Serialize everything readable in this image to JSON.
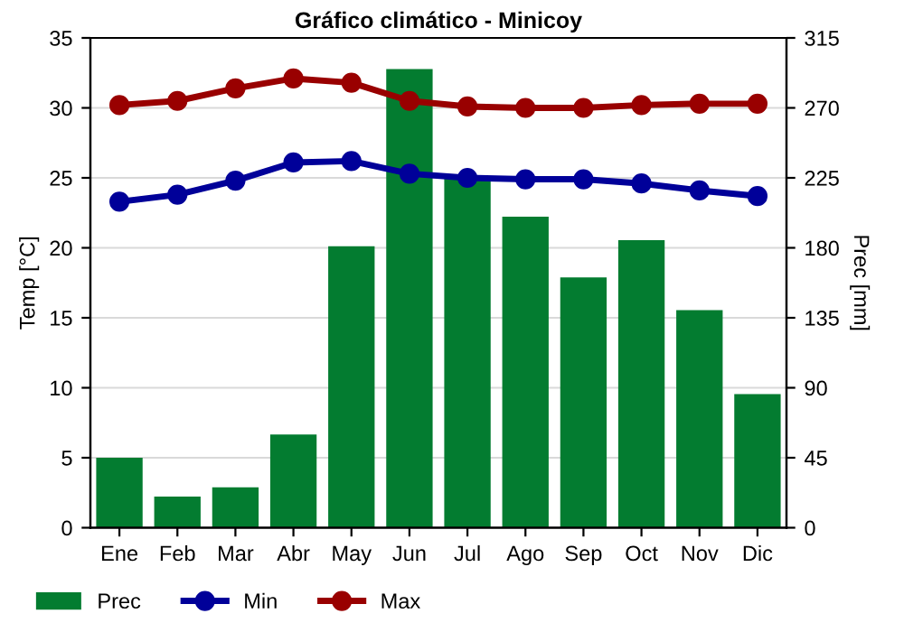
{
  "chart_data": {
    "type": "bar",
    "title": "Gráfico climático - Minicoy",
    "ylabel": "Temp [°C]",
    "y2label": "Prec [mm]",
    "categories": [
      "Ene",
      "Feb",
      "Mar",
      "Abr",
      "May",
      "Jun",
      "Jul",
      "Ago",
      "Sep",
      "Oct",
      "Nov",
      "Dic"
    ],
    "series": [
      {
        "name": "Prec",
        "axis": "y2",
        "color": "#037c30",
        "values": [
          45,
          20,
          26,
          60,
          181,
          295,
          225,
          200,
          161,
          185,
          140,
          86
        ]
      },
      {
        "name": "Min",
        "type": "line",
        "color": "#000099",
        "values": [
          23.3,
          23.8,
          24.8,
          26.1,
          26.2,
          25.3,
          25.0,
          24.9,
          24.9,
          24.6,
          24.1,
          23.7
        ]
      },
      {
        "name": "Max",
        "type": "line",
        "color": "#990000",
        "values": [
          30.2,
          30.5,
          31.4,
          32.1,
          31.8,
          30.5,
          30.1,
          30.0,
          30.0,
          30.2,
          30.3,
          30.3
        ]
      }
    ],
    "ylim": [
      0,
      35
    ],
    "yticks": [
      0,
      5,
      10,
      15,
      20,
      25,
      30,
      35
    ],
    "y2lim": [
      0,
      315
    ],
    "y2ticks": [
      0,
      45,
      90,
      135,
      180,
      225,
      270,
      315
    ],
    "grid": true,
    "legend": "bottom left",
    "marker": "circle",
    "line_style": "solid"
  }
}
